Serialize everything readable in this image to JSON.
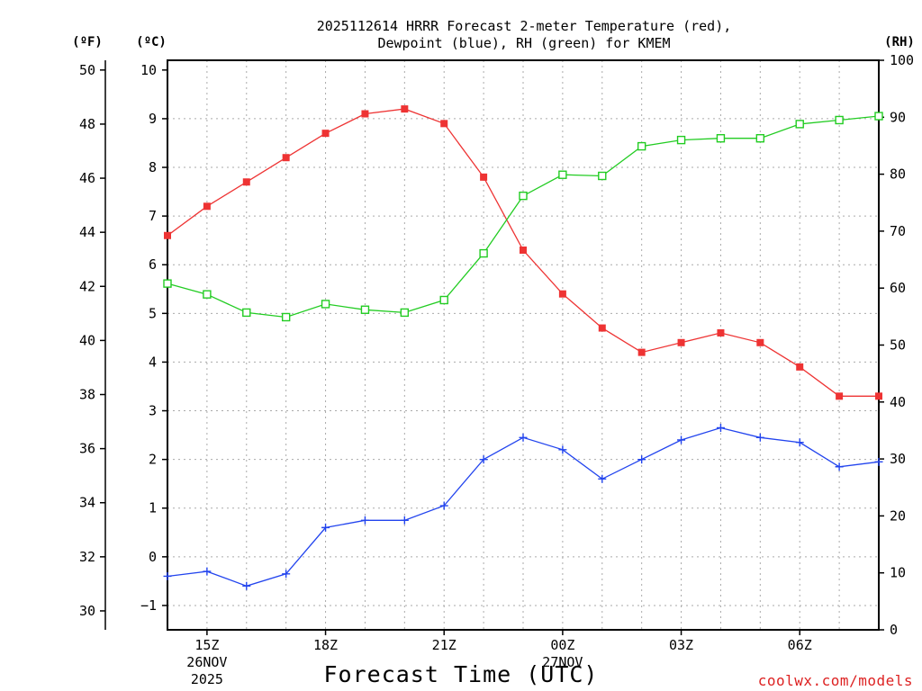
{
  "chart_data": {
    "type": "line",
    "title_line1": "2025112614 HRRR Forecast 2-meter Temperature (red),",
    "title_line2": "Dewpoint (blue), RH (green) for KMEM",
    "xlabel": "Forecast Time (UTC)",
    "credit": "coolwx.com/models",
    "units": {
      "left_f": "(ºF)",
      "left_c": "(ºC)",
      "right": "(RH)"
    },
    "x_hours": [
      14,
      15,
      16,
      17,
      18,
      19,
      20,
      21,
      22,
      23,
      24,
      25,
      26,
      27,
      28,
      29,
      30,
      31,
      32
    ],
    "x_ticks": [
      {
        "hour": 15,
        "label": "15Z",
        "sub1": "26NOV",
        "sub2": "2025"
      },
      {
        "hour": 18,
        "label": "18Z",
        "sub1": "",
        "sub2": ""
      },
      {
        "hour": 21,
        "label": "21Z",
        "sub1": "",
        "sub2": ""
      },
      {
        "hour": 24,
        "label": "00Z",
        "sub1": "27NOV",
        "sub2": ""
      },
      {
        "hour": 27,
        "label": "03Z",
        "sub1": "",
        "sub2": ""
      },
      {
        "hour": 30,
        "label": "06Z",
        "sub1": "",
        "sub2": ""
      }
    ],
    "y_c_range": [
      -1.5,
      10.2
    ],
    "y_c_ticks": [
      -1,
      0,
      1,
      2,
      3,
      4,
      5,
      6,
      7,
      8,
      9,
      10
    ],
    "y_f_ticks": [
      30,
      32,
      34,
      36,
      38,
      40,
      42,
      44,
      46,
      48,
      50
    ],
    "y_rh_range": [
      0,
      100
    ],
    "y_rh_ticks": [
      0,
      10,
      20,
      30,
      40,
      50,
      60,
      70,
      80,
      90,
      100
    ],
    "colors": {
      "temperature": "#ee3333",
      "dewpoint": "#2244ee",
      "rh": "#22cc22"
    },
    "series": [
      {
        "name": "Temperature",
        "axis": "C",
        "marker": "filled-square",
        "values": [
          6.6,
          7.2,
          7.7,
          8.2,
          8.7,
          9.1,
          9.2,
          8.9,
          7.8,
          6.3,
          5.4,
          4.7,
          4.2,
          4.4,
          4.6,
          4.4,
          3.9,
          3.3,
          3.3
        ]
      },
      {
        "name": "Dewpoint",
        "axis": "C",
        "marker": "plus",
        "values": [
          -0.4,
          -0.3,
          -0.6,
          -0.35,
          0.6,
          0.75,
          0.75,
          1.05,
          2.0,
          2.45,
          2.2,
          1.6,
          2.0,
          2.4,
          2.65,
          2.45,
          2.35,
          1.85,
          1.95
        ]
      },
      {
        "name": "RH",
        "axis": "RH",
        "marker": "open-square",
        "values": [
          60.8,
          58.9,
          55.7,
          54.9,
          57.2,
          56.2,
          55.7,
          57.9,
          66.1,
          76.2,
          79.9,
          79.7,
          84.9,
          86.0,
          86.3,
          86.3,
          88.8,
          89.5,
          90.2
        ]
      }
    ]
  }
}
